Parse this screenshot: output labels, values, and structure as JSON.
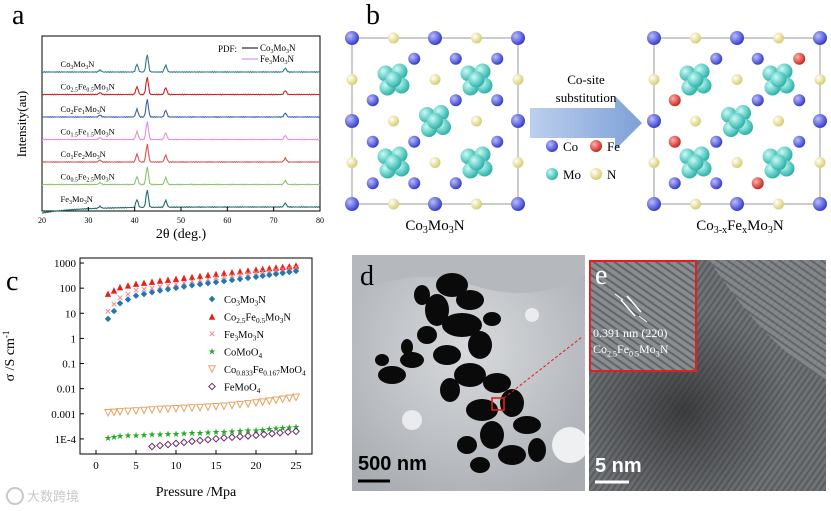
{
  "panel_labels": {
    "a": "a",
    "b": "b",
    "c": "c",
    "d": "d",
    "e": "e"
  },
  "chart_data": [
    {
      "type": "line",
      "panel": "a",
      "title": "",
      "xlabel": "2θ (deg.)",
      "ylabel": "Intensity(au)",
      "xlim": [
        20,
        80
      ],
      "xticks": [
        "20",
        "30",
        "40",
        "50",
        "60",
        "70",
        "80"
      ],
      "legend_title": "PDF:",
      "legend": [
        {
          "name": "Co3Mo3N",
          "color": "#000000"
        },
        {
          "name": "Fe3Mo3N",
          "color": "#c080ff"
        }
      ],
      "series": [
        {
          "name": "Co3Mo3N",
          "color": "#2a7f86",
          "peaks": [
            32.5,
            40.5,
            42.7,
            46.7,
            72.5
          ]
        },
        {
          "name": "Co2.5Fe0.5Mo3N",
          "color": "#cc2222",
          "peaks": [
            32.5,
            40.5,
            42.7,
            46.7,
            72.5
          ]
        },
        {
          "name": "Co2Fe1Mo3N",
          "color": "#3a5fb0",
          "peaks": [
            32.5,
            40.5,
            42.7,
            46.7,
            72.5
          ]
        },
        {
          "name": "Co1.5Fe1.5Mo3N",
          "color": "#e58ee0",
          "peaks": [
            32.5,
            40.5,
            42.7,
            46.7,
            72.5
          ]
        },
        {
          "name": "Co1Fe2Mo3N",
          "color": "#d9534f",
          "peaks": [
            32.5,
            40.5,
            42.7,
            46.7,
            72.5
          ]
        },
        {
          "name": "Co0.5Fe2.5Mo3N",
          "color": "#8cc56a",
          "peaks": [
            32.5,
            40.5,
            42.7,
            46.7,
            72.5
          ]
        },
        {
          "name": "Fe3Mo3N",
          "color": "#1f6e6e",
          "peaks": [
            32.5,
            40.5,
            42.7,
            46.7,
            72.5
          ]
        }
      ]
    },
    {
      "type": "scatter",
      "panel": "c",
      "xlabel": "Pressure /Mpa",
      "ylabel": "σ /S cm-1",
      "xlim": [
        -2,
        27
      ],
      "ylim_log10": [
        -4.6,
        3.2
      ],
      "xticks": [
        "0",
        "5",
        "10",
        "15",
        "20",
        "25"
      ],
      "yticks": [
        "1000",
        "100",
        "10",
        "1",
        "0.1",
        "0.01",
        "0.001",
        "1E-4"
      ],
      "series": [
        {
          "name": "Co3Mo3N",
          "marker": "diamond",
          "color": "#1f77b4",
          "points": [
            [
              1.5,
              6
            ],
            [
              3,
              25
            ],
            [
              5,
              50
            ],
            [
              8,
              80
            ],
            [
              12,
              130
            ],
            [
              16,
              190
            ],
            [
              20,
              280
            ],
            [
              25,
              480
            ]
          ]
        },
        {
          "name": "Co2.5Fe0.5Mo3N",
          "marker": "triangle",
          "color": "#e8201a",
          "points": [
            [
              1.5,
              60
            ],
            [
              3,
              110
            ],
            [
              5,
              150
            ],
            [
              8,
              200
            ],
            [
              12,
              280
            ],
            [
              16,
              400
            ],
            [
              20,
              550
            ],
            [
              25,
              800
            ]
          ]
        },
        {
          "name": "Fe3Mo3N",
          "marker": "cross",
          "color": "#f08080",
          "points": [
            [
              1.5,
              12
            ],
            [
              3,
              40
            ],
            [
              5,
              80
            ],
            [
              8,
              110
            ],
            [
              12,
              180
            ],
            [
              16,
              280
            ],
            [
              20,
              400
            ],
            [
              25,
              650
            ]
          ]
        },
        {
          "name": "CoMoO4",
          "marker": "star",
          "color": "#22aa22",
          "points": [
            [
              1.5,
              0.00011
            ],
            [
              3,
              0.00013
            ],
            [
              5,
              0.00014
            ],
            [
              8,
              0.00015
            ],
            [
              12,
              0.00017
            ],
            [
              16,
              0.00019
            ],
            [
              20,
              0.00022
            ],
            [
              25,
              0.0003
            ]
          ]
        },
        {
          "name": "Co0.833Fe0.167MoO4",
          "marker": "triangle-down",
          "color": "#e8a060",
          "points": [
            [
              1.5,
              0.0011
            ],
            [
              3,
              0.0012
            ],
            [
              5,
              0.0013
            ],
            [
              8,
              0.0015
            ],
            [
              12,
              0.0017
            ],
            [
              16,
              0.002
            ],
            [
              20,
              0.0027
            ],
            [
              25,
              0.0045
            ]
          ]
        },
        {
          "name": "FeMoO4",
          "marker": "diamond-open",
          "color": "#6a2a6a",
          "points": [
            [
              7,
              5e-05
            ],
            [
              9,
              6e-05
            ],
            [
              12,
              8e-05
            ],
            [
              16,
              0.00011
            ],
            [
              20,
              0.00014
            ],
            [
              24,
              0.00019
            ],
            [
              25,
              0.0002
            ]
          ]
        }
      ]
    }
  ],
  "panel_b": {
    "left_label": "Co3Mo3N",
    "right_label": "Co3-xFexMo3N",
    "arrow_text_line1": "Co-site",
    "arrow_text_line2": "substitution",
    "legend": [
      {
        "name": "Co",
        "color": "#5a60e0"
      },
      {
        "name": "Fe",
        "color": "#e05050"
      },
      {
        "name": "Mo",
        "color": "#4fd1c8"
      },
      {
        "name": "N",
        "color": "#f0eaa0"
      }
    ]
  },
  "panel_d": {
    "scale_bar": "500 nm"
  },
  "panel_e": {
    "scale_bar": "5 nm",
    "annotation_line1": "0.391 nm (220)",
    "annotation_line2": "Co2.5Fe0.5Mo3N"
  },
  "watermark": "大数跨境"
}
